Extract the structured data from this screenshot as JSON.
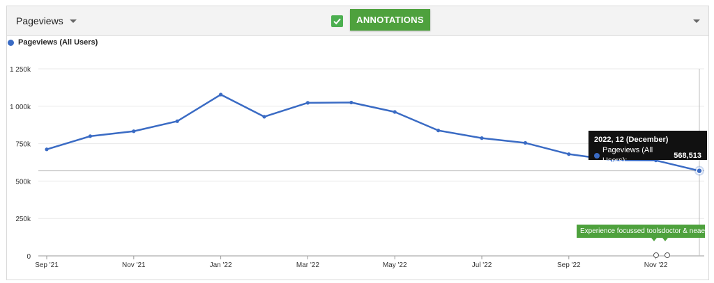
{
  "toolbar": {
    "metric_label": "Pageviews",
    "annotations_label": "ANNOTATIONS",
    "annotations_checked": true
  },
  "colors": {
    "series": "#3a6bc4",
    "accent_green": "#4ea13d"
  },
  "chart_data": {
    "type": "line",
    "title": "",
    "xlabel": "",
    "ylabel": "",
    "x": [
      "2021-09",
      "2021-10",
      "2021-11",
      "2021-12",
      "2022-01",
      "2022-02",
      "2022-03",
      "2022-04",
      "2022-05",
      "2022-06",
      "2022-07",
      "2022-08",
      "2022-09",
      "2022-10",
      "2022-11",
      "2022-12"
    ],
    "x_tick_labels": [
      "Sep '21",
      "Nov '21",
      "Jan '22",
      "Mar '22",
      "May '22",
      "Jul '22",
      "Sep '22",
      "Nov '22"
    ],
    "y_tick_labels": [
      "0",
      "250k",
      "500k",
      "750k",
      "1 000k",
      "1 250k"
    ],
    "ylim": [
      0,
      1250000
    ],
    "grid": true,
    "legend": "top-left",
    "series": [
      {
        "name": "Pageviews (All Users)",
        "values": [
          712000,
          800000,
          833000,
          900000,
          1078000,
          930000,
          1023000,
          1025000,
          962000,
          838000,
          787000,
          755000,
          680000,
          640000,
          638000,
          568513
        ]
      }
    ],
    "tooltip": {
      "title": "2022, 12 (December)",
      "series_name": "Pageviews (All Users):",
      "value": "568,513"
    },
    "annotation_text": "Experience focussed toolsdoctor & neaera"
  }
}
